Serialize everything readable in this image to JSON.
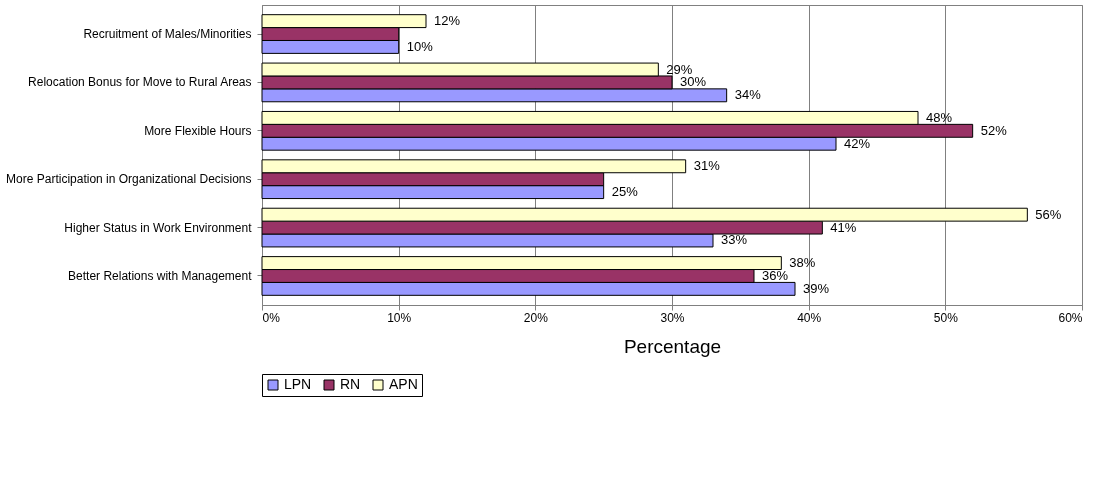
{
  "chart_data": {
    "type": "bar",
    "orientation": "horizontal",
    "xlabel": "Percentage",
    "categories": [
      "Recruitment of Males/Minorities",
      "Relocation Bonus for Move to Rural Areas",
      "More Flexible Hours",
      "More Participation in Organizational Decisions",
      "Higher Status in Work Environment",
      "Better Relations with Management"
    ],
    "series": [
      {
        "name": "LPN",
        "color": "#9999ff",
        "values": [
          10,
          34,
          42,
          25,
          33,
          39
        ],
        "value_labels": [
          "10%",
          "34%",
          "42%",
          "25%",
          "33%",
          "39%"
        ]
      },
      {
        "name": "RN",
        "color": "#993366",
        "values": [
          10,
          30,
          52,
          25,
          41,
          36
        ],
        "value_labels": [
          null,
          "30%",
          "52%",
          null,
          "41%",
          "36%"
        ]
      },
      {
        "name": "APN",
        "color": "#ffffcc",
        "values": [
          12,
          29,
          48,
          31,
          56,
          38
        ],
        "value_labels": [
          "12%",
          "29%",
          "48%",
          "31%",
          "56%",
          "38%"
        ]
      }
    ],
    "xlim": [
      0,
      60
    ],
    "xticks": [
      {
        "value": 0,
        "label": "0%"
      },
      {
        "value": 10,
        "label": "10%"
      },
      {
        "value": 20,
        "label": "20%"
      },
      {
        "value": 30,
        "label": "30%"
      },
      {
        "value": 40,
        "label": "40%"
      },
      {
        "value": 50,
        "label": "50%"
      },
      {
        "value": 60,
        "label": "60%"
      }
    ],
    "grid": "x",
    "legend": "bottom"
  }
}
